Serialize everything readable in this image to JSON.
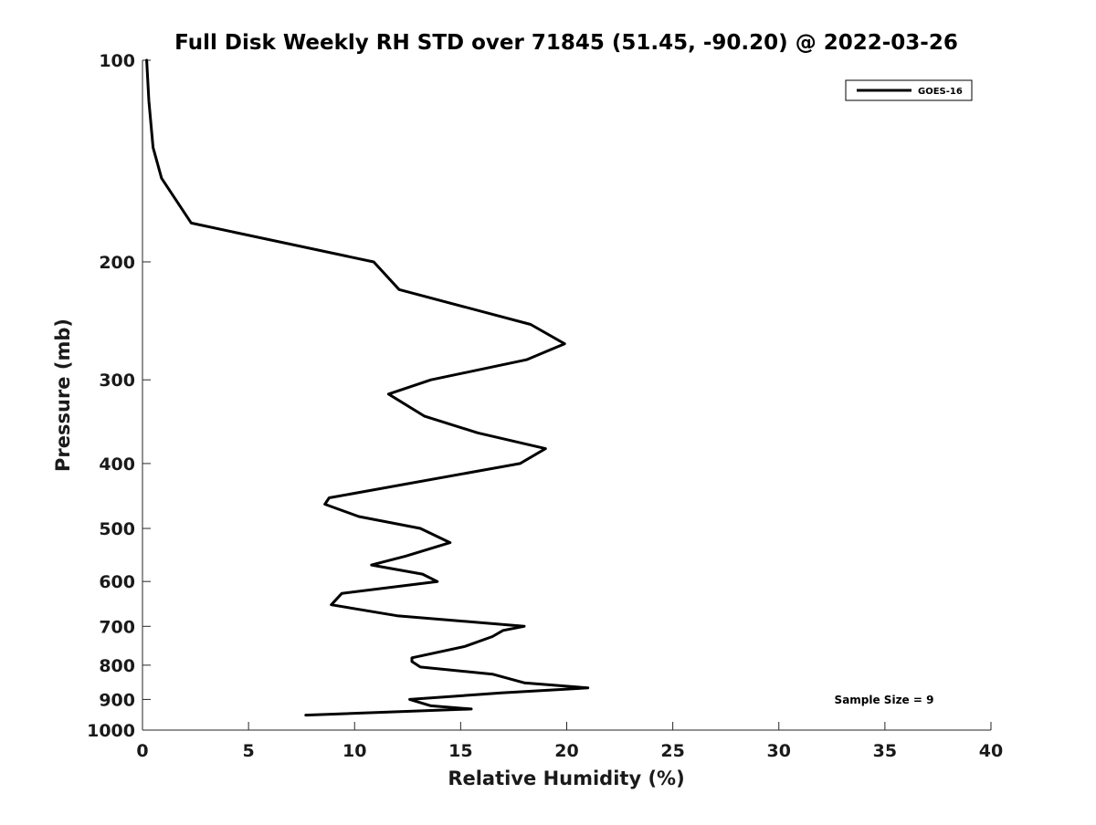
{
  "chart_data": {
    "type": "line",
    "title": "Full Disk Weekly RH STD over 71845 (51.45, -90.20) @ 2022-03-26",
    "xlabel": "Relative Humidity (%)",
    "ylabel": "Pressure (mb)",
    "xlim": [
      0,
      40
    ],
    "ylim": [
      1000,
      100
    ],
    "yscale": "log",
    "grid": false,
    "x_ticks": [
      "0",
      "5",
      "10",
      "15",
      "20",
      "25",
      "30",
      "35",
      "40"
    ],
    "y_ticks": [
      "100",
      "200",
      "300",
      "400",
      "500",
      "600",
      "700",
      "800",
      "900",
      "1000"
    ],
    "legend": {
      "position": "top-right",
      "entries": [
        "GOES-16"
      ]
    },
    "annotation": "Sample Size = 9",
    "series": [
      {
        "name": "GOES-16",
        "color": "#000000",
        "points": [
          [
            0.2,
            100
          ],
          [
            0.3,
            115
          ],
          [
            0.5,
            135
          ],
          [
            0.9,
            150
          ],
          [
            2.3,
            175
          ],
          [
            10.9,
            200
          ],
          [
            12.1,
            220
          ],
          [
            18.3,
            248
          ],
          [
            19.9,
            265
          ],
          [
            18.1,
            280
          ],
          [
            13.6,
            300
          ],
          [
            11.6,
            315
          ],
          [
            13.3,
            340
          ],
          [
            15.8,
            360
          ],
          [
            19.0,
            380
          ],
          [
            17.8,
            400
          ],
          [
            8.8,
            450
          ],
          [
            8.6,
            460
          ],
          [
            10.2,
            480
          ],
          [
            13.1,
            500
          ],
          [
            14.5,
            525
          ],
          [
            12.4,
            550
          ],
          [
            10.8,
            567
          ],
          [
            13.2,
            585
          ],
          [
            13.9,
            600
          ],
          [
            9.4,
            625
          ],
          [
            8.9,
            650
          ],
          [
            12.0,
            675
          ],
          [
            18.0,
            700
          ],
          [
            17.0,
            710
          ],
          [
            16.5,
            725
          ],
          [
            15.2,
            750
          ],
          [
            12.7,
            780
          ],
          [
            12.7,
            790
          ],
          [
            13.1,
            805
          ],
          [
            16.5,
            825
          ],
          [
            18.0,
            850
          ],
          [
            21.0,
            865
          ],
          [
            16.9,
            880
          ],
          [
            12.6,
            900
          ],
          [
            13.6,
            920
          ],
          [
            15.5,
            930
          ],
          [
            7.7,
            950
          ]
        ]
      }
    ]
  }
}
